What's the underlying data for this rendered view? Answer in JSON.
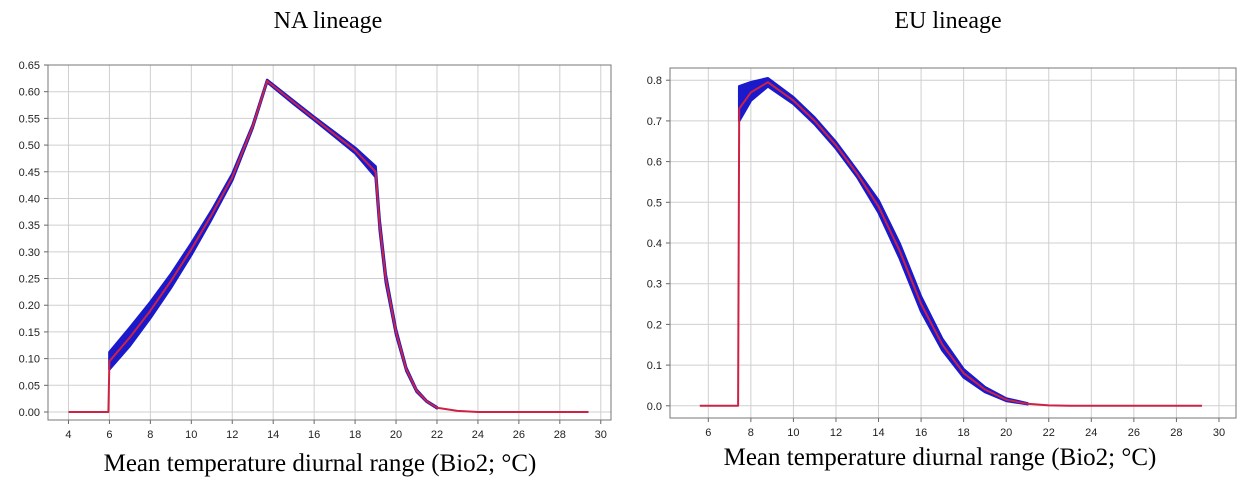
{
  "chart_data": [
    {
      "type": "line",
      "title": "NA lineage",
      "xlabel": "Mean temperature diurnal range (Bio2; °C)",
      "ylabel": "",
      "xlim": [
        3,
        30.5
      ],
      "ylim": [
        -0.015,
        0.65
      ],
      "xticks": [
        "4",
        "6",
        "8",
        "10",
        "12",
        "14",
        "16",
        "18",
        "20",
        "22",
        "24",
        "26",
        "28",
        "30"
      ],
      "yticks": [
        "0.00",
        "0.05",
        "0.10",
        "0.15",
        "0.20",
        "0.25",
        "0.30",
        "0.35",
        "0.40",
        "0.45",
        "0.50",
        "0.55",
        "0.60",
        "0.65"
      ],
      "grid": true,
      "series": [
        {
          "role": "mean",
          "color": "#cc2244",
          "x": [
            4,
            5.95,
            6.0,
            7,
            8,
            9,
            10,
            11,
            12,
            13,
            13.7,
            15,
            16,
            17,
            18,
            19,
            19.2,
            19.5,
            20,
            20.5,
            21,
            21.5,
            22,
            23,
            24,
            26,
            28,
            29.4
          ],
          "y": [
            0.0,
            0.0,
            0.095,
            0.14,
            0.19,
            0.245,
            0.305,
            0.37,
            0.44,
            0.535,
            0.62,
            0.58,
            0.55,
            0.52,
            0.49,
            0.45,
            0.35,
            0.25,
            0.15,
            0.08,
            0.04,
            0.02,
            0.008,
            0.002,
            0.0,
            0.0,
            0.0,
            0.0
          ]
        },
        {
          "role": "uncertainty-band",
          "color": "#1a1acc",
          "x": [
            6,
            7,
            8,
            9,
            10,
            11,
            12,
            13,
            13.7,
            15,
            16,
            17,
            18,
            19,
            19.2,
            19.5,
            20,
            20.5,
            21,
            21.5,
            22
          ],
          "upper": [
            0.112,
            0.158,
            0.206,
            0.258,
            0.316,
            0.378,
            0.446,
            0.538,
            0.622,
            0.583,
            0.553,
            0.524,
            0.495,
            0.46,
            0.36,
            0.258,
            0.155,
            0.083,
            0.042,
            0.021,
            0.009
          ],
          "lower": [
            0.08,
            0.124,
            0.176,
            0.232,
            0.294,
            0.362,
            0.434,
            0.532,
            0.618,
            0.577,
            0.547,
            0.516,
            0.485,
            0.44,
            0.34,
            0.242,
            0.145,
            0.077,
            0.038,
            0.019,
            0.007
          ]
        }
      ]
    },
    {
      "type": "line",
      "title": "EU lineage",
      "xlabel": "Mean temperature diurnal range (Bio2; °C)",
      "ylabel": "",
      "xlim": [
        4.2,
        30.8
      ],
      "ylim": [
        -0.03,
        0.83
      ],
      "xticks": [
        "6",
        "8",
        "10",
        "12",
        "14",
        "16",
        "18",
        "20",
        "22",
        "24",
        "26",
        "28",
        "30"
      ],
      "yticks": [
        "0.0",
        "0.1",
        "0.2",
        "0.3",
        "0.4",
        "0.5",
        "0.6",
        "0.7",
        "0.8"
      ],
      "grid": true,
      "series": [
        {
          "role": "mean",
          "color": "#cc2244",
          "x": [
            5.6,
            7.4,
            7.45,
            8,
            8.8,
            10,
            11,
            12,
            13,
            14,
            15,
            16,
            17,
            18,
            19,
            20,
            21,
            22,
            23,
            24,
            26,
            28,
            29.2
          ],
          "y": [
            0.0,
            0.0,
            0.73,
            0.77,
            0.795,
            0.75,
            0.7,
            0.64,
            0.57,
            0.49,
            0.38,
            0.25,
            0.15,
            0.08,
            0.04,
            0.015,
            0.005,
            0.001,
            0.0,
            0.0,
            0.0,
            0.0,
            0.0
          ]
        },
        {
          "role": "uncertainty-band",
          "color": "#1a1acc",
          "x": [
            7.45,
            8,
            8.8,
            10,
            11,
            12,
            13,
            14,
            15,
            16,
            17,
            18,
            19,
            20,
            21
          ],
          "upper": [
            0.785,
            0.795,
            0.805,
            0.758,
            0.708,
            0.648,
            0.578,
            0.505,
            0.398,
            0.268,
            0.164,
            0.09,
            0.046,
            0.018,
            0.006
          ],
          "lower": [
            0.7,
            0.75,
            0.785,
            0.742,
            0.692,
            0.632,
            0.562,
            0.475,
            0.362,
            0.232,
            0.136,
            0.07,
            0.034,
            0.012,
            0.004
          ]
        }
      ]
    }
  ]
}
